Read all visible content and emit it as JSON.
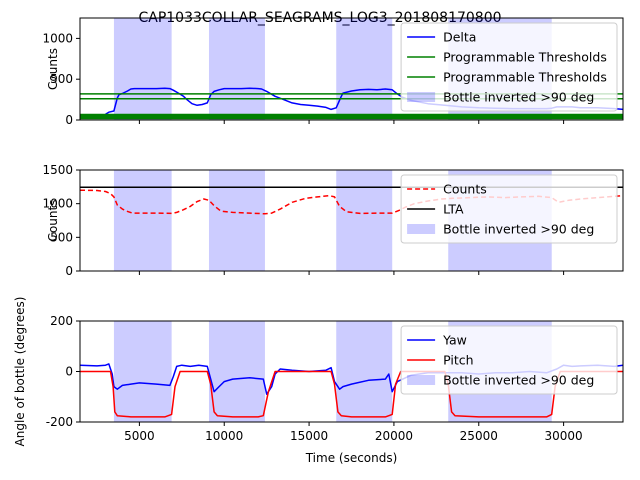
{
  "figure": {
    "title": "CAP1033COLLAR_SEAGRAMS_LOG3_201808170800"
  },
  "chart_data": [
    {
      "type": "line",
      "ylabel": "Counts",
      "xlabel": "",
      "xlim": [
        1500,
        33500
      ],
      "ylim": [
        0,
        1250
      ],
      "yticks": [
        0,
        500,
        1000
      ],
      "legend_position": "top-right",
      "spans_name": "Bottle inverted >90 deg",
      "spans": [
        [
          3500,
          6900
        ],
        [
          9100,
          12400
        ],
        [
          16600,
          19900
        ],
        [
          23200,
          29300
        ]
      ],
      "series": [
        {
          "name": "Delta",
          "color": "#0000ff",
          "style": "solid",
          "x": [
            3000,
            3200,
            3500,
            3700,
            3800,
            4000,
            4300,
            4500,
            4700,
            5000,
            5500,
            6000,
            6500,
            6800,
            7000,
            7300,
            7600,
            7800,
            8100,
            8400,
            8700,
            9000,
            9200,
            9400,
            9700,
            10000,
            10500,
            11000,
            11500,
            12000,
            12200,
            12500,
            13000,
            13500,
            14000,
            14500,
            15000,
            15500,
            16000,
            16300,
            16600,
            16900,
            17000,
            17500,
            18000,
            18500,
            19000,
            19500,
            19900,
            20200,
            20500,
            21000,
            22000,
            23000,
            24000,
            25000,
            26000,
            27000,
            28000,
            29000,
            29300,
            29600,
            30500,
            31000,
            32000,
            33000,
            33500
          ],
          "y": [
            70,
            95,
            110,
            270,
            310,
            325,
            355,
            380,
            385,
            385,
            385,
            385,
            390,
            385,
            365,
            330,
            290,
            250,
            200,
            180,
            190,
            210,
            310,
            350,
            370,
            385,
            385,
            385,
            390,
            385,
            380,
            350,
            290,
            250,
            210,
            190,
            180,
            170,
            155,
            130,
            150,
            290,
            330,
            355,
            370,
            375,
            370,
            380,
            370,
            320,
            280,
            240,
            200,
            180,
            160,
            150,
            145,
            140,
            140,
            140,
            145,
            160,
            160,
            150,
            150,
            140,
            130
          ]
        },
        {
          "name": "Programmable Thresholds",
          "color": "#008000",
          "style": "solid",
          "x": [
            1500,
            33500
          ],
          "y": [
            320,
            320
          ]
        },
        {
          "name": "Programmable Thresholds",
          "color": "#008000",
          "style": "solid",
          "x": [
            1500,
            33500
          ],
          "y": [
            260,
            260
          ]
        },
        {
          "name": "",
          "color": "#008000",
          "style": "solid",
          "width": 3.5,
          "x": [
            1500,
            33500
          ],
          "y": [
            55,
            55
          ]
        },
        {
          "name": "",
          "color": "#008000",
          "style": "solid",
          "width": 2.5,
          "x": [
            1500,
            33500
          ],
          "y": [
            25,
            25
          ]
        }
      ]
    },
    {
      "type": "line",
      "ylabel": "Counts",
      "xlabel": "",
      "xlim": [
        1500,
        33500
      ],
      "ylim": [
        0,
        1500
      ],
      "yticks": [
        0,
        500,
        1000,
        1500
      ],
      "legend_position": "top-right",
      "spans_name": "Bottle inverted >90 deg",
      "spans": [
        [
          3500,
          6900
        ],
        [
          9100,
          12400
        ],
        [
          16600,
          19900
        ],
        [
          23200,
          29300
        ]
      ],
      "series": [
        {
          "name": "Counts",
          "color": "#ff0000",
          "style": "dashed",
          "x": [
            1500,
            2500,
            3000,
            3300,
            3500,
            3700,
            4000,
            4300,
            4600,
            5000,
            6000,
            6900,
            7200,
            7600,
            8000,
            8400,
            8800,
            9100,
            9400,
            9800,
            10500,
            11500,
            12400,
            12800,
            13300,
            14000,
            14800,
            15500,
            16200,
            16500,
            16800,
            17200,
            18000,
            19000,
            19900,
            20300,
            20700,
            21200,
            22000,
            22800,
            23500,
            24500,
            25500,
            26500,
            27500,
            28500,
            29300,
            29700,
            30300,
            31000,
            32000,
            33000,
            33500
          ],
          "y": [
            1200,
            1195,
            1180,
            1150,
            1100,
            980,
            920,
            885,
            860,
            860,
            860,
            855,
            870,
            910,
            960,
            1030,
            1070,
            1050,
            970,
            890,
            870,
            860,
            850,
            860,
            920,
            1020,
            1080,
            1100,
            1120,
            1100,
            960,
            880,
            855,
            860,
            860,
            900,
            950,
            1000,
            1040,
            1070,
            1080,
            1090,
            1100,
            1090,
            1100,
            1110,
            1090,
            1020,
            1050,
            1070,
            1090,
            1110,
            1120
          ]
        },
        {
          "name": "LTA",
          "color": "#000000",
          "style": "solid",
          "x": [
            1500,
            33500
          ],
          "y": [
            1245,
            1245
          ]
        }
      ]
    },
    {
      "type": "line",
      "ylabel": "Angle of bottle (degrees)",
      "xlabel": "Time (seconds)",
      "xlim": [
        1500,
        33500
      ],
      "ylim": [
        -200,
        200
      ],
      "yticks": [
        -200,
        0,
        200
      ],
      "xticks": [
        5000,
        10000,
        15000,
        20000,
        25000,
        30000
      ],
      "legend_position": "top-right",
      "spans_name": "Bottle inverted >90 deg",
      "spans": [
        [
          3500,
          6900
        ],
        [
          9100,
          12400
        ],
        [
          16600,
          19900
        ],
        [
          23200,
          29300
        ]
      ],
      "series": [
        {
          "name": "Yaw",
          "color": "#0000ff",
          "style": "solid",
          "x": [
            1500,
            2500,
            3000,
            3200,
            3400,
            3500,
            3700,
            4000,
            4500,
            5000,
            6000,
            6800,
            7000,
            7200,
            7500,
            8000,
            8500,
            9000,
            9200,
            9400,
            9700,
            10000,
            10500,
            11500,
            12300,
            12500,
            12800,
            13000,
            13300,
            14000,
            15000,
            16000,
            16300,
            16500,
            16800,
            17000,
            17500,
            18500,
            19500,
            19700,
            19900,
            20200,
            21000,
            22000,
            23000,
            24000,
            25000,
            26000,
            27000,
            28000,
            29000,
            29600,
            30000,
            30500,
            31000,
            32000,
            33000,
            33500
          ],
          "y": [
            25,
            22,
            25,
            30,
            -10,
            -60,
            -70,
            -55,
            -50,
            -45,
            -50,
            -55,
            -20,
            20,
            25,
            20,
            25,
            20,
            -30,
            -80,
            -60,
            -40,
            -30,
            -25,
            -30,
            -90,
            -60,
            -10,
            10,
            5,
            0,
            5,
            15,
            -40,
            -70,
            -60,
            -50,
            -35,
            -30,
            -10,
            -80,
            -40,
            -15,
            -5,
            -5,
            -5,
            -10,
            -5,
            -5,
            0,
            -5,
            10,
            25,
            20,
            22,
            25,
            20,
            25
          ]
        },
        {
          "name": "Pitch",
          "color": "#ff0000",
          "style": "solid",
          "x": [
            1500,
            3300,
            3450,
            3550,
            3700,
            4500,
            6500,
            6900,
            7100,
            7400,
            9000,
            9200,
            9400,
            9600,
            10500,
            12000,
            12300,
            12600,
            13000,
            16300,
            16500,
            16700,
            16900,
            17500,
            19500,
            19900,
            20100,
            20400,
            23000,
            23200,
            23400,
            23600,
            25000,
            29000,
            29300,
            29500,
            29800,
            33500
          ],
          "y": [
            0,
            0,
            -60,
            -160,
            -175,
            -180,
            -180,
            -170,
            -60,
            0,
            0,
            -50,
            -160,
            -175,
            -180,
            -180,
            -175,
            -80,
            0,
            0,
            -50,
            -160,
            -175,
            -180,
            -180,
            -170,
            -50,
            0,
            0,
            -50,
            -160,
            -175,
            -180,
            -180,
            -170,
            -60,
            0,
            0
          ]
        }
      ]
    }
  ]
}
